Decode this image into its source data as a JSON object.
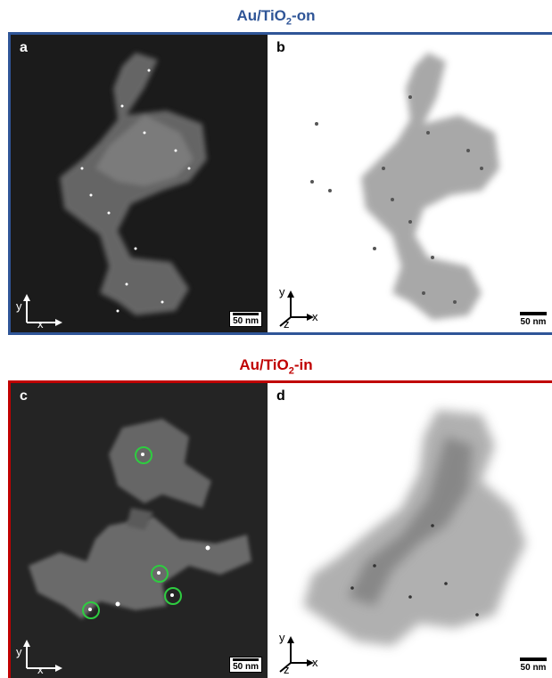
{
  "sections": [
    {
      "title_prefix": "Au/TiO",
      "title_sub": "2",
      "title_suffix": "-on",
      "color": "#2f5597"
    },
    {
      "title_prefix": "Au/TiO",
      "title_sub": "2",
      "title_suffix": "-in",
      "color": "#c00000"
    }
  ],
  "panels": [
    {
      "letter": "a",
      "scale": "50 nm",
      "axes": [
        "y",
        "x"
      ]
    },
    {
      "letter": "b",
      "scale": "50 nm",
      "axes": [
        "y",
        "x",
        "z"
      ]
    },
    {
      "letter": "c",
      "scale": "50 nm",
      "axes": [
        "y",
        "x"
      ]
    },
    {
      "letter": "d",
      "scale": "50 nm",
      "axes": [
        "y",
        "x",
        "z"
      ]
    }
  ]
}
